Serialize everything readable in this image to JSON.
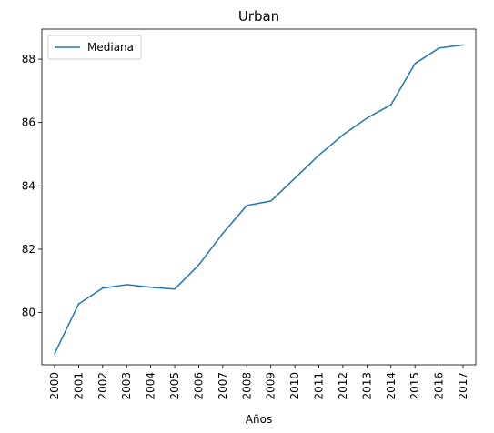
{
  "chart_data": {
    "type": "line",
    "title": "Urban",
    "xlabel": "Años",
    "ylabel": "",
    "x": [
      "2000",
      "2001",
      "2002",
      "2003",
      "2004",
      "2005",
      "2006",
      "2007",
      "2008",
      "2009",
      "2010",
      "2011",
      "2012",
      "2013",
      "2014",
      "2015",
      "2016",
      "2017"
    ],
    "series": [
      {
        "name": "Mediana",
        "color": "#1f77b4",
        "values": [
          78.7,
          80.27,
          80.77,
          80.88,
          80.8,
          80.74,
          81.5,
          82.5,
          83.38,
          83.52,
          84.24,
          84.97,
          85.61,
          86.14,
          86.56,
          87.86,
          88.35,
          88.45
        ]
      }
    ],
    "ylim": [
      78.35,
      88.95
    ],
    "yticks": [
      80,
      82,
      84,
      86,
      88
    ],
    "grid": false,
    "legend_position": "upper left"
  }
}
